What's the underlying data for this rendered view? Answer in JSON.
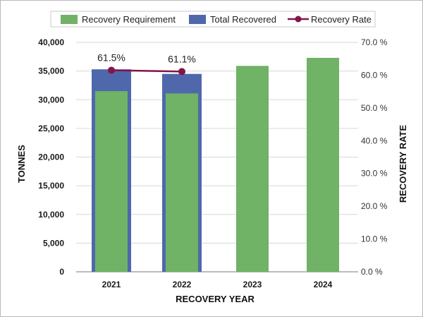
{
  "chart_data": {
    "type": "bar",
    "categories": [
      "2021",
      "2022",
      "2023",
      "2024"
    ],
    "series": [
      {
        "name": "Recovery Requirement",
        "type": "bar",
        "axis": "left",
        "color": "#70b266",
        "values": [
          31500,
          31100,
          35900,
          37300
        ]
      },
      {
        "name": "Total Recovered",
        "type": "bar",
        "axis": "left",
        "color": "#4f68ac",
        "values": [
          35300,
          34500,
          null,
          null
        ]
      },
      {
        "name": "Recovery Rate",
        "type": "line",
        "axis": "right",
        "color": "#82154a",
        "values": [
          61.5,
          61.1,
          null,
          null
        ]
      }
    ],
    "data_labels": [
      "61.5%",
      "61.1%"
    ],
    "xlabel": "RECOVERY YEAR",
    "ylabel": "TONNES",
    "y2label": "RECOVERY RATE",
    "ylim": [
      0,
      40000
    ],
    "y2lim": [
      0,
      70
    ],
    "y_ticks": [
      "0",
      "5,000",
      "10,000",
      "15,000",
      "20,000",
      "25,000",
      "30,000",
      "35,000",
      "40,000"
    ],
    "y2_ticks": [
      "0.0 %",
      "10.0 %",
      "20.0 %",
      "30.0 %",
      "40.0 %",
      "50.0 %",
      "60.0 %",
      "70.0 %"
    ],
    "grid": true,
    "legend_position": "top"
  }
}
